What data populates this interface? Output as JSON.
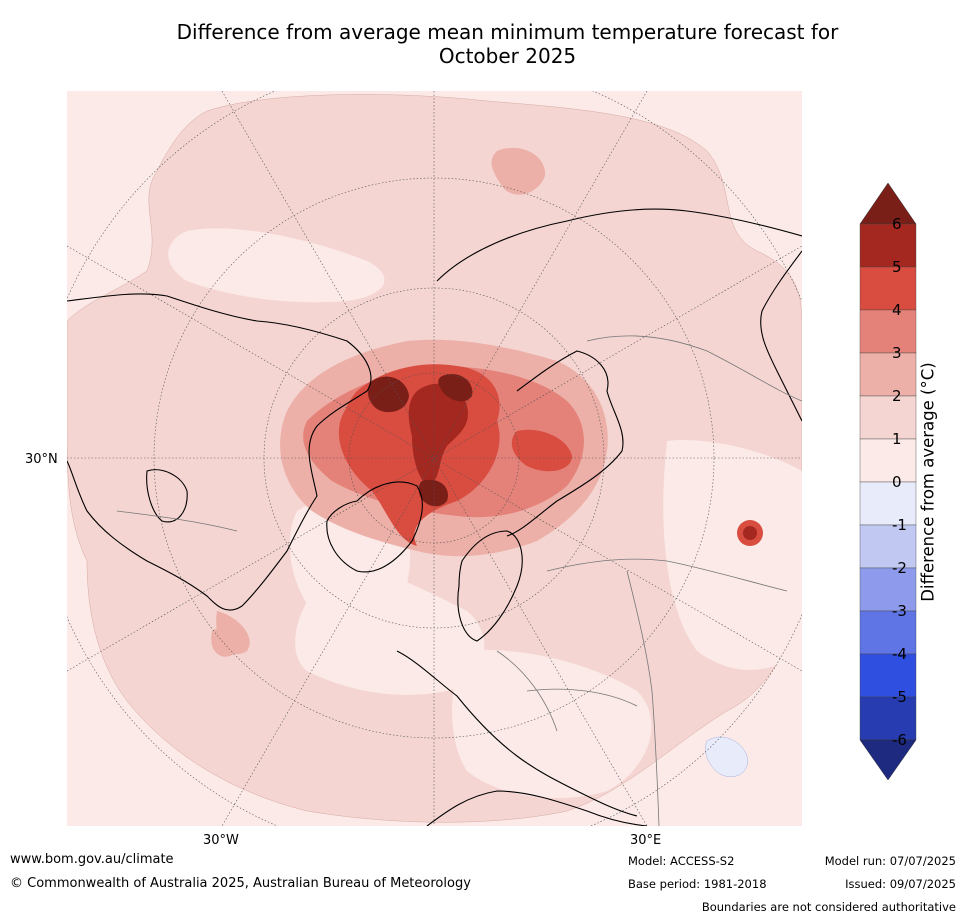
{
  "title_line1": "Difference from average mean minimum temperature forecast for",
  "title_line2": "October 2025",
  "map_labels": {
    "lat_30n": "30°N",
    "lon_30w": "30°W",
    "lon_30e": "30°E"
  },
  "colorbar": {
    "title": "Difference from average ($^\\circ$C)",
    "title_display": "Difference from average (°C)",
    "ticks": [
      "6",
      "5",
      "4",
      "3",
      "2",
      "1",
      "0",
      "-1",
      "-2",
      "-3",
      "-4",
      "-5",
      "-6"
    ],
    "bands": [
      {
        "range": "5 to 6",
        "color": "#a42820"
      },
      {
        "range": "4 to 5",
        "color": "#d94c40"
      },
      {
        "range": "3 to 4",
        "color": "#e4827a"
      },
      {
        "range": "2 to 3",
        "color": "#ecb0a8"
      },
      {
        "range": "1 to 2",
        "color": "#f4d5d2"
      },
      {
        "range": "0 to 1",
        "color": "#fbeae7"
      },
      {
        "range": "-1 to 0",
        "color": "#e8ebfa"
      },
      {
        "range": "-2 to -1",
        "color": "#c1c8f2"
      },
      {
        "range": "-3 to -2",
        "color": "#8e9bec"
      },
      {
        "range": "-4 to -3",
        "color": "#5f75e6"
      },
      {
        "range": "-5 to -4",
        "color": "#2f4fe0"
      },
      {
        "range": "-6 to -5",
        "color": "#263cb0"
      }
    ],
    "extend_high_color": "#7a1e18",
    "extend_low_color": "#1e2a80"
  },
  "footer": {
    "website": "www.bom.gov.au/climate",
    "copyright": "© Commonwealth of Australia 2025, Australian Bureau of Meteorology",
    "model": "Model: ACCESS-S2",
    "base_period": "Base period: 1981-2018",
    "model_run": "Model run: 07/07/2025",
    "issued": "Issued: 09/07/2025",
    "disclaimer": "Boundaries are not considered authoritative"
  }
}
